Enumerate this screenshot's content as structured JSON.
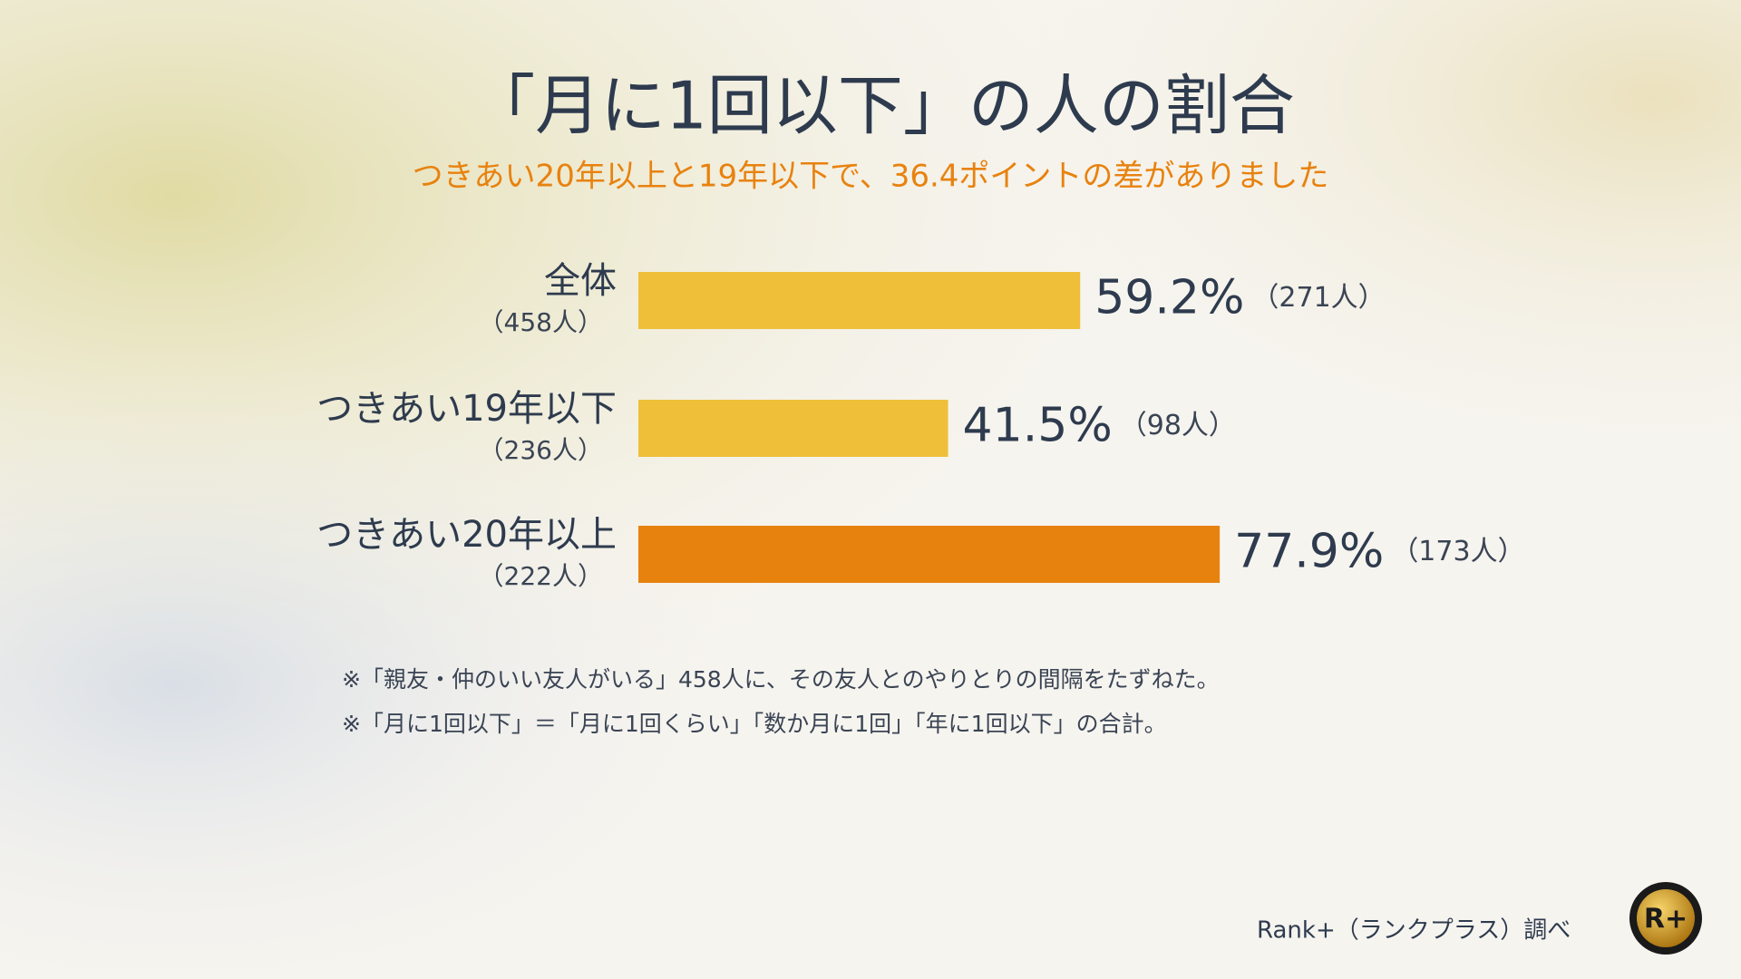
{
  "chart_data": {
    "type": "hbar",
    "title": "「月に1回以下」の人の割合",
    "subtitle": "つきあい20年以上と19年以下で、36.4ポイントの差がありました",
    "categories": [
      "全体",
      "つきあい19年以下",
      "つきあい20年以上"
    ],
    "category_sublabels": [
      "（458人）",
      "（236人）",
      "（222人）"
    ],
    "values": [
      59.2,
      41.5,
      77.9
    ],
    "value_labels": [
      "59.2%",
      "41.5%",
      "77.9%"
    ],
    "count_labels": [
      "（271人）",
      "（98人）",
      "（173人）"
    ],
    "colors": [
      "#efbf3a",
      "#efbf3a",
      "#e8820f"
    ],
    "notes": [
      "※「親友・仲のいい友人がいる」458人に、その友人とのやりとりの間隔をたずねた。",
      "※「月に1回以下」＝「月に1回くらい」「数か月に1回」「年に1回以下」の合計。"
    ],
    "source": "Rank+（ランクプラス）調べ",
    "logo": "R+"
  }
}
